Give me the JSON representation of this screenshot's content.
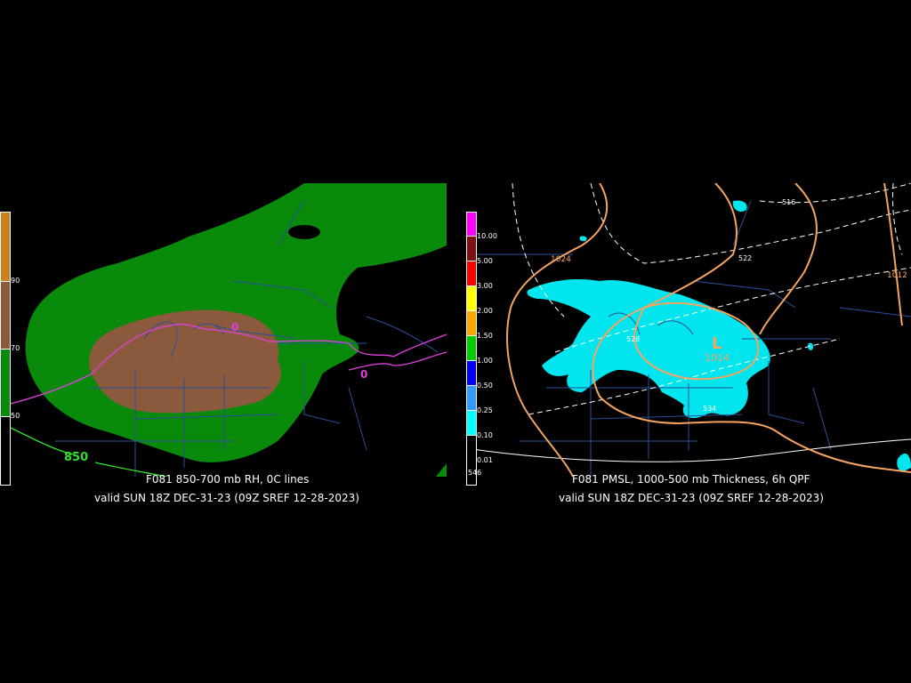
{
  "left_panel": {
    "caption_title": "F081 850-700 mb RH, 0C lines",
    "caption_valid": "valid SUN 18Z DEC-31-23 (09Z SREF 12-28-2023)",
    "colorbar_labels": [
      "90",
      "70",
      "50"
    ],
    "colorbar_colors": [
      "#c8821e",
      "#8b5a3c",
      "#228b22",
      "#ffffff"
    ],
    "contour_labels": {
      "zero_c_a": "0",
      "zero_c_b": "0",
      "height": "850"
    },
    "colors": {
      "rh_high": "#8b5a3c",
      "rh_mid": "#0a8a0a",
      "zero_line": "#e040e0",
      "height_line": "#30e030",
      "borders": "#2a4f9a"
    }
  },
  "right_panel": {
    "caption_title": "F081 PMSL, 1000-500 mb Thickness, 6h QPF",
    "caption_valid": "valid SUN 18Z DEC-31-23 (09Z SREF 12-28-2023)",
    "colorbar_labels": [
      "10.00",
      "5.00",
      "3.00",
      "2.00",
      "1.50",
      "1.00",
      "0.50",
      "0.25",
      "0.10",
      "0.01"
    ],
    "colorbar_colors": [
      "#ff00ff",
      "#7a1010",
      "#ff0000",
      "#ffff00",
      "#ffa500",
      "#00cc00",
      "#0000ff",
      "#3399ff",
      "#00ffff",
      "#ffffff"
    ],
    "isobar_labels": {
      "p1024": "1024",
      "p1012": "1012",
      "p1014": "1014",
      "low_symbol": "L"
    },
    "thickness_labels": {
      "t516": "516",
      "t522": "522",
      "t528": "528",
      "t534": "534",
      "t546": "546"
    },
    "colors": {
      "qpf": "#00e5ee",
      "isobar": "#f4a460",
      "thickness": "#ffffff",
      "borders": "#2a4f9a"
    }
  }
}
